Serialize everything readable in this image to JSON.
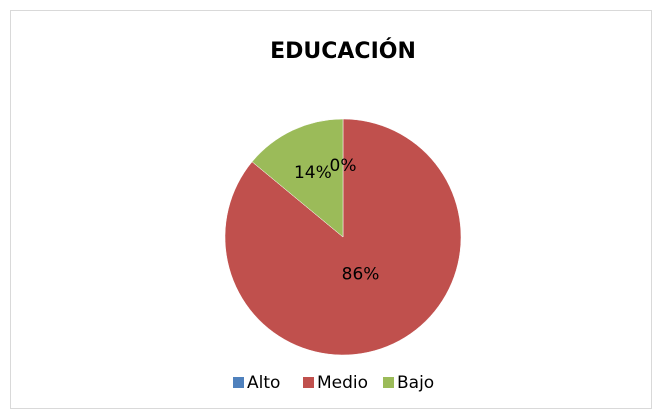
{
  "chart_data": {
    "type": "pie",
    "title": "EDUCACIÓN",
    "categories": [
      "Alto",
      "Medio",
      "Bajo"
    ],
    "values": [
      0,
      86,
      14
    ],
    "value_labels": [
      "0%",
      "86%",
      "14%"
    ],
    "colors": [
      "#4f81bd",
      "#c0504d",
      "#9bbb59"
    ],
    "legend": "bottom"
  }
}
